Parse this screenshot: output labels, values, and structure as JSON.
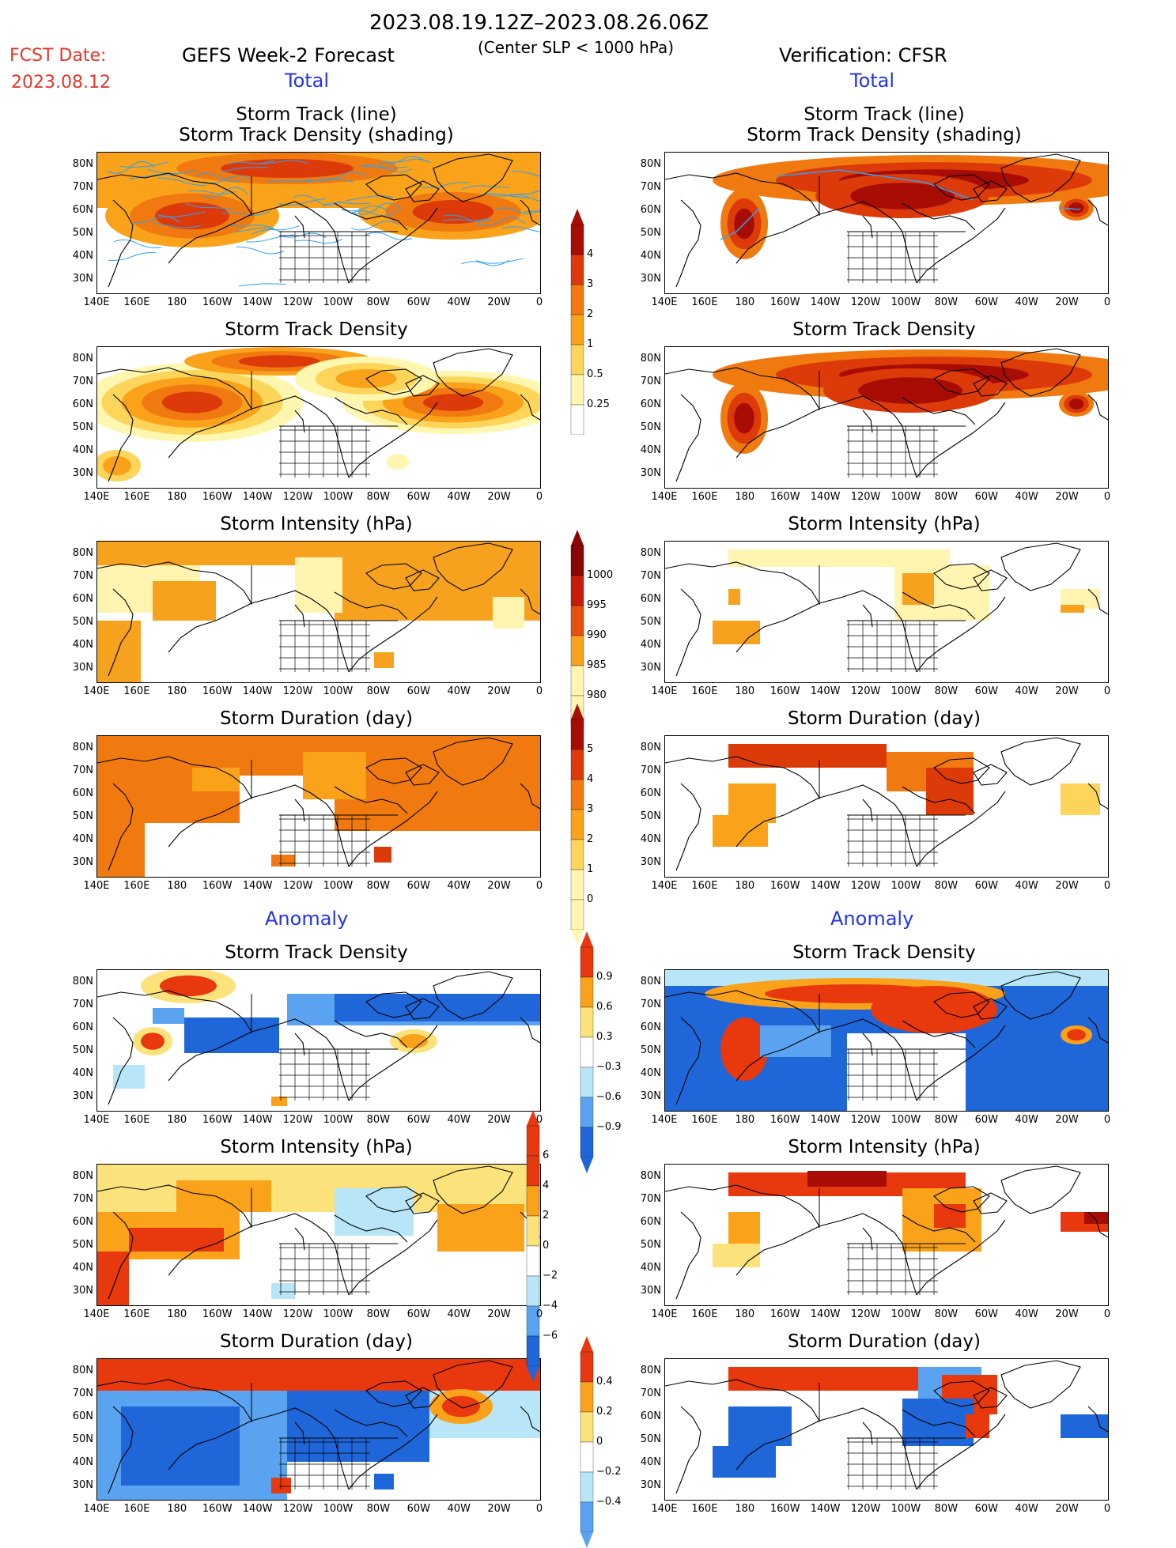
{
  "header": {
    "date_range": "2023.08.19.12Z–2023.08.26.06Z",
    "fcst_label": "FCST Date:",
    "fcst_date": "2023.08.12",
    "left_title": "GEFS Week-2 Forecast",
    "center_note": "(Center SLP < 1000 hPa)",
    "right_title": "Verification: CFSR",
    "total": "Total",
    "anomaly": "Anomaly"
  },
  "panel_titles": {
    "track": [
      "Storm Track (line)",
      "Storm Track Density (shading)"
    ],
    "density": "Storm Track Density",
    "intensity": "Storm Intensity (hPa)",
    "duration": "Storm Duration (day)"
  },
  "lat_labels": [
    "80N",
    "70N",
    "60N",
    "50N",
    "40N",
    "30N"
  ],
  "lon_labels": [
    "140E",
    "160E",
    "180",
    "160W",
    "140W",
    "120W",
    "100W",
    "80W",
    "60W",
    "40W",
    "20W",
    "0"
  ],
  "colorbars": {
    "density_total": [
      "4",
      "3",
      "2",
      "1",
      "0.5",
      "0.25"
    ],
    "intensity_total": [
      "1000",
      "995",
      "990",
      "985",
      "980"
    ],
    "duration_total": [
      "5",
      "4",
      "3",
      "2",
      "1",
      "0"
    ],
    "density_anom": [
      "0.9",
      "0.6",
      "0.3",
      "−0.3",
      "−0.6",
      "−0.9"
    ],
    "intensity_anom": [
      "6",
      "4",
      "2",
      "0",
      "−2",
      "−4",
      "−6"
    ],
    "duration_anom": [
      "0.4",
      "0.2",
      "0",
      "−0.2",
      "−0.4"
    ]
  },
  "colors": {
    "total_scale": [
      "#fff7b0",
      "#fcd55a",
      "#f9a21a",
      "#f07a10",
      "#dd3a0a",
      "#a80d05"
    ],
    "intensity_scale": [
      "#fff5b0",
      "#f7a21e",
      "#e8500e",
      "#c41e0a",
      "#8a0504"
    ],
    "anom_scale": [
      "#1f66d8",
      "#5aa3f0",
      "#b8e6f8",
      "#ffffff",
      "#fbe27a",
      "#f9a21a",
      "#e8380e"
    ],
    "track_line": "#2fa0f0",
    "map_line": "#000000"
  }
}
